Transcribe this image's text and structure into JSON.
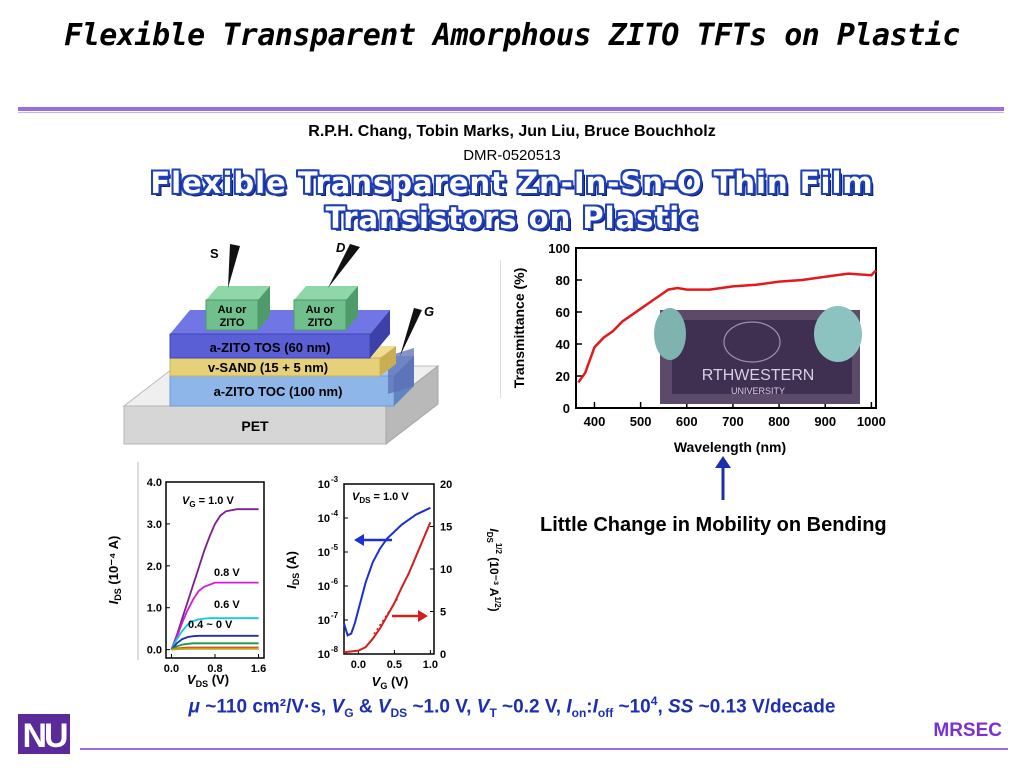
{
  "slide": {
    "title": "Flexible Transparent Amorphous ZITO TFTs on Plastic",
    "authors": "R.P.H. Chang, Tobin Marks, Jun Liu, Bruce Bouchholz",
    "grant": "DMR-0520513",
    "subtitle_line1": "Flexible Transparent Zn-In-Sn-O Thin Film",
    "subtitle_line2": "Transistors on Plastic",
    "bending_note": "Little Change in Mobility on Bending",
    "metrics": {
      "mu": "μ",
      "mu_value": " ~110 cm²/V·s, ",
      "vg": "V",
      "vg_sub": "G",
      "amp": " & ",
      "vds": "V",
      "vds_sub": "DS",
      "vds_value": " ~1.0 V, ",
      "vt": "V",
      "vt_sub": "T",
      "vt_value": " ~0.2 V, ",
      "ion": "I",
      "ion_sub": "on",
      "colon": ":",
      "ioff": "I",
      "ioff_sub": "off",
      "ratio_value": " ~10",
      "ratio_exp": "4",
      "comma": ", ",
      "ss": "SS",
      "ss_value": " ~0.13 V/decade"
    },
    "footer": {
      "mrsec": "MRSEC",
      "logo_letters": "NU"
    }
  },
  "device_diagram": {
    "source_label": "S",
    "drain_label": "D",
    "gate_label": "G",
    "contact_label_line1": "Au or",
    "contact_label_line2": "ZITO",
    "layer_tos": "a-ZITO TOS (60 nm)",
    "layer_sand": "v-SAND (15 + 5 nm)",
    "layer_toc": "a-ZITO TOC (100 nm)",
    "substrate": "PET",
    "colors": {
      "contact": "#6fc08c",
      "tos": "#5a5fd6",
      "sand": "#e6d178",
      "toc": "#8fb6e8",
      "pet": "#d9d9d9"
    }
  },
  "photo_inset": {
    "visible_text_1": "RTHWESTERN",
    "visible_text_2": "UNIVERSITY"
  },
  "chart_data": [
    {
      "type": "line",
      "id": "transmittance",
      "xlabel": "Wavelength (nm)",
      "ylabel": "Transmittance (%)",
      "xlim": [
        360,
        1010
      ],
      "ylim": [
        0,
        100
      ],
      "xticks": [
        400,
        500,
        600,
        700,
        800,
        900,
        1000
      ],
      "yticks": [
        0,
        20,
        40,
        60,
        80,
        100
      ],
      "color": "#e31a1c",
      "x": [
        365,
        380,
        400,
        420,
        440,
        460,
        480,
        500,
        520,
        540,
        560,
        580,
        600,
        650,
        700,
        750,
        800,
        850,
        900,
        950,
        1000,
        1010
      ],
      "y": [
        16,
        22,
        38,
        44,
        48,
        54,
        58,
        62,
        66,
        70,
        74,
        75,
        74,
        74,
        76,
        77,
        79,
        80,
        82,
        84,
        83,
        86
      ]
    },
    {
      "type": "line",
      "id": "output",
      "xlabel_main": "V",
      "xlabel_sub": "DS",
      "xlabel_unit": " (V)",
      "ylabel_main": "I",
      "ylabel_sub": "DS",
      "ylabel_unit": " (10⁻⁴ A)",
      "xlim": [
        -0.1,
        1.7
      ],
      "ylim": [
        -0.2,
        4.0
      ],
      "xticks": [
        0.0,
        0.8,
        1.6
      ],
      "yticks": [
        0.0,
        1.0,
        2.0,
        3.0,
        4.0
      ],
      "ytick_labels": [
        "0.0",
        "1.0",
        "2.0",
        "3.0",
        "4.0"
      ],
      "xtick_labels": [
        "0.0",
        "0.8",
        "1.6"
      ],
      "annotation_vg_main": "V",
      "annotation_vg_sub": "G",
      "annotation_vg_value": " = 1.0 V",
      "curve_labels": [
        "0.8 V",
        "0.6 V",
        "0.4 ~ 0 V"
      ],
      "x": [
        0,
        0.1,
        0.2,
        0.3,
        0.4,
        0.5,
        0.6,
        0.7,
        0.8,
        0.9,
        1.0,
        1.2,
        1.4,
        1.6
      ],
      "series": [
        {
          "color": "#7a1f8c",
          "values": [
            0,
            0.35,
            0.75,
            1.15,
            1.55,
            1.95,
            2.35,
            2.7,
            3.0,
            3.2,
            3.3,
            3.35,
            3.35,
            3.35
          ]
        },
        {
          "color": "#d01ecf",
          "values": [
            0,
            0.3,
            0.65,
            0.95,
            1.2,
            1.4,
            1.5,
            1.55,
            1.6,
            1.6,
            1.6,
            1.6,
            1.6,
            1.6
          ]
        },
        {
          "color": "#10c8e0",
          "values": [
            0,
            0.25,
            0.45,
            0.6,
            0.68,
            0.72,
            0.74,
            0.75,
            0.75,
            0.75,
            0.75,
            0.75,
            0.75,
            0.75
          ]
        },
        {
          "color": "#1c2fb0",
          "values": [
            0,
            0.15,
            0.25,
            0.3,
            0.32,
            0.33,
            0.33,
            0.33,
            0.33,
            0.33,
            0.33,
            0.33,
            0.33,
            0.33
          ]
        },
        {
          "color": "#1a9a3a",
          "values": [
            0,
            0.08,
            0.12,
            0.14,
            0.15,
            0.15,
            0.15,
            0.15,
            0.15,
            0.15,
            0.15,
            0.15,
            0.15,
            0.15
          ]
        },
        {
          "color": "#e04a2a",
          "values": [
            0,
            0.03,
            0.04,
            0.05,
            0.05,
            0.05,
            0.05,
            0.05,
            0.05,
            0.05,
            0.05,
            0.05,
            0.05,
            0.05
          ]
        },
        {
          "color": "#b8a81a",
          "values": [
            0,
            0.01,
            0.015,
            0.02,
            0.02,
            0.02,
            0.02,
            0.02,
            0.02,
            0.02,
            0.02,
            0.02,
            0.02,
            0.02
          ]
        }
      ]
    },
    {
      "type": "line",
      "id": "transfer",
      "xlabel_main": "V",
      "xlabel_sub": "G",
      "xlabel_unit": " (V)",
      "ylabel_main": "I",
      "ylabel_sub": "DS",
      "ylabel_unit": " (A)",
      "y2label_main": "I",
      "y2label_sub": "DS",
      "y2label_sup": "1/2",
      "y2label_unit": " (10⁻³ A",
      "y2label_unit_sup": "1/2",
      "y2label_close": ")",
      "xlim": [
        -0.2,
        1.05
      ],
      "ylim_log_exponent": [
        -8,
        -3
      ],
      "ytick_bases": [
        "10",
        "10",
        "10",
        "10",
        "10",
        "10"
      ],
      "ytick_exponents": [
        "-8",
        "-7",
        "-6",
        "-5",
        "-4",
        "-3"
      ],
      "xticks": [
        0.0,
        0.5,
        1.0
      ],
      "xtick_labels": [
        "0.0",
        "0.5",
        "1.0"
      ],
      "y2lim": [
        0,
        20
      ],
      "y2ticks": [
        0,
        5,
        10,
        15,
        20
      ],
      "y2tick_labels": [
        "0",
        "5",
        "10",
        "15",
        "20"
      ],
      "annotation_vds_main": "V",
      "annotation_vds_sub": "DS",
      "annotation_vds_value": " = 1.0 V",
      "series": [
        {
          "axis": "left-log",
          "color": "#1c2fd0",
          "x": [
            -0.2,
            -0.15,
            -0.1,
            -0.05,
            0.0,
            0.05,
            0.1,
            0.2,
            0.3,
            0.4,
            0.5,
            0.6,
            0.7,
            0.8,
            0.9,
            1.0
          ],
          "log_values": [
            -7.1,
            -7.45,
            -7.4,
            -7.1,
            -6.7,
            -6.3,
            -5.9,
            -5.3,
            -4.9,
            -4.6,
            -4.4,
            -4.2,
            -4.05,
            -3.9,
            -3.8,
            -3.7
          ]
        },
        {
          "axis": "right-linear",
          "color": "#d21f1f",
          "x": [
            -0.2,
            0.0,
            0.1,
            0.2,
            0.3,
            0.4,
            0.5,
            0.6,
            0.7,
            0.8,
            0.9,
            1.0
          ],
          "values": [
            0.2,
            0.4,
            0.8,
            1.8,
            3.0,
            4.5,
            6.0,
            7.8,
            9.5,
            11.5,
            13.5,
            15.5
          ]
        }
      ]
    }
  ]
}
